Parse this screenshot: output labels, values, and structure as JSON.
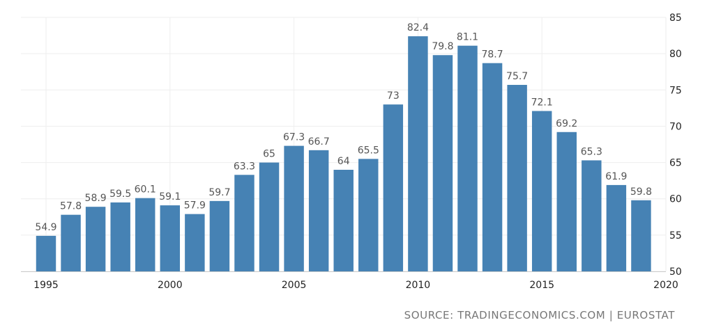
{
  "chart_data": {
    "type": "bar",
    "x": [
      1995,
      1996,
      1997,
      1998,
      1999,
      2000,
      2001,
      2002,
      2003,
      2004,
      2005,
      2006,
      2007,
      2008,
      2009,
      2010,
      2011,
      2012,
      2013,
      2014,
      2015,
      2016,
      2017,
      2018,
      2019
    ],
    "values": [
      54.9,
      57.8,
      58.9,
      59.5,
      60.1,
      59.1,
      57.9,
      59.7,
      63.3,
      65,
      67.3,
      66.7,
      64,
      65.5,
      73,
      82.4,
      79.8,
      81.1,
      78.7,
      75.7,
      72.1,
      69.2,
      65.3,
      61.9,
      59.8
    ],
    "value_labels": [
      "54.9",
      "57.8",
      "58.9",
      "59.5",
      "60.1",
      "59.1",
      "57.9",
      "59.7",
      "63.3",
      "65",
      "67.3",
      "66.7",
      "64",
      "65.5",
      "73",
      "82.4",
      "79.8",
      "81.1",
      "78.7",
      "75.7",
      "72.1",
      "69.2",
      "65.3",
      "61.9",
      "59.8"
    ],
    "x_ticks": [
      "1995",
      "2000",
      "2005",
      "2010",
      "2015",
      "2020"
    ],
    "y_ticks": [
      "50",
      "55",
      "60",
      "65",
      "70",
      "75",
      "80",
      "85"
    ],
    "ylim": [
      50,
      85
    ],
    "xlim": [
      1995,
      2020
    ],
    "y_axis_side": "right",
    "grid": true,
    "bar_color": "#4682b4",
    "title": "",
    "xlabel": "",
    "ylabel": ""
  },
  "source": "SOURCE: TRADINGECONOMICS.COM | EUROSTAT"
}
